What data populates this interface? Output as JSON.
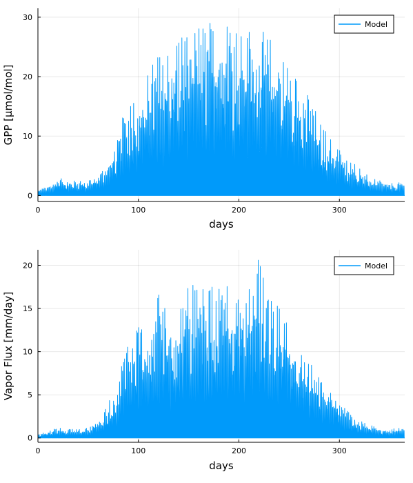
{
  "chart_data": [
    {
      "type": "line",
      "xlabel": "days",
      "ylabel": "GPP [μmol/mol]",
      "xlim": [
        0,
        365
      ],
      "ylim": [
        -1,
        31.5
      ],
      "xticks": [
        0,
        100,
        200,
        300
      ],
      "yticks": [
        0,
        10,
        20,
        30
      ],
      "xtick_labels": [
        "0",
        "100",
        "200",
        "300"
      ],
      "ytick_labels": [
        "0",
        "10",
        "20",
        "30"
      ],
      "grid": true,
      "legend_position": "top-right",
      "series": [
        {
          "name": "Model",
          "color": "#009AFA",
          "envelope_days": [
            0,
            10,
            20,
            30,
            40,
            50,
            60,
            70,
            80,
            90,
            100,
            110,
            120,
            130,
            140,
            150,
            160,
            170,
            180,
            190,
            200,
            210,
            220,
            230,
            240,
            250,
            260,
            270,
            280,
            290,
            300,
            310,
            320,
            330,
            340,
            350,
            365
          ],
          "daily_peak": [
            1,
            1.5,
            3,
            2.5,
            2.5,
            2.5,
            3.5,
            6,
            11,
            16,
            19,
            21.5,
            24,
            25,
            27.5,
            28,
            29.5,
            29.5,
            30,
            30.5,
            30,
            29,
            28,
            27,
            25,
            22,
            20,
            17,
            13,
            10,
            8,
            6,
            5,
            3,
            2.5,
            2,
            2.3
          ],
          "daily_low": [
            0,
            0,
            0,
            0,
            0,
            0,
            0,
            0,
            0,
            0,
            0,
            0,
            0,
            0,
            0,
            0,
            0,
            0,
            0,
            0,
            0,
            0,
            0,
            0,
            0,
            0,
            0,
            0,
            0,
            0,
            0,
            0,
            0,
            0,
            0,
            0,
            0
          ]
        }
      ]
    },
    {
      "type": "line",
      "xlabel": "days",
      "ylabel": "Vapor Flux [mm/day]",
      "xlim": [
        0,
        365
      ],
      "ylim": [
        -0.5,
        21.8
      ],
      "xticks": [
        0,
        100,
        200,
        300
      ],
      "yticks": [
        0,
        5,
        10,
        15,
        20
      ],
      "xtick_labels": [
        "0",
        "100",
        "200",
        "300"
      ],
      "ytick_labels": [
        "0",
        "5",
        "10",
        "15",
        "20"
      ],
      "grid": true,
      "legend_position": "top-right",
      "series": [
        {
          "name": "Model",
          "color": "#009AFA",
          "envelope_days": [
            0,
            10,
            20,
            30,
            40,
            50,
            60,
            70,
            80,
            90,
            100,
            110,
            120,
            130,
            140,
            150,
            160,
            170,
            180,
            190,
            200,
            210,
            220,
            230,
            240,
            250,
            260,
            270,
            280,
            290,
            300,
            310,
            320,
            330,
            340,
            350,
            365
          ],
          "daily_peak": [
            0.4,
            0.8,
            1.3,
            1.0,
            1.0,
            1.2,
            2.0,
            4.0,
            7.0,
            12.0,
            14.0,
            13.0,
            18.3,
            15.0,
            16.5,
            17.5,
            18.0,
            17.5,
            18.0,
            18.0,
            18.5,
            17.5,
            21.0,
            16.0,
            15.5,
            14.0,
            11.0,
            9.0,
            7.0,
            6.0,
            4.5,
            3.0,
            2.0,
            1.5,
            1.2,
            1.0,
            1.3
          ],
          "daily_low": [
            0,
            0,
            0,
            0,
            0,
            0,
            0,
            0,
            0,
            0,
            0,
            0,
            0,
            0,
            0,
            0,
            0,
            0,
            0,
            0,
            0,
            0,
            0,
            0,
            0,
            0,
            0,
            0,
            0,
            0,
            0,
            0,
            0,
            0,
            0,
            0,
            0
          ]
        }
      ]
    }
  ]
}
